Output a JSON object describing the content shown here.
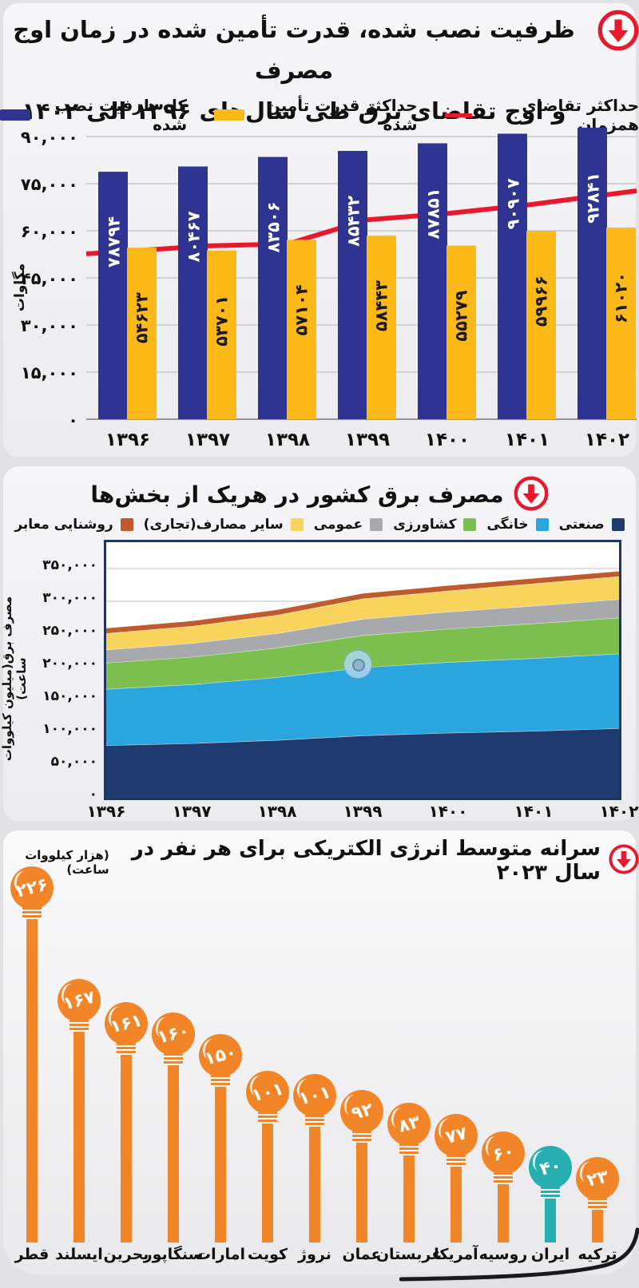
{
  "page_bg": "#e2e2e4",
  "accent_red": "#e8192c",
  "sections": {
    "capacity": {
      "title_line1": "ظرفیت نصب شده، قدرت تأمین شده در زمان اوج مصرف",
      "title_line2": "و اوج تقاضای برق طی سال‌های ۱۳۹۶ الی ۱۴۰۲"
    },
    "consumption": {
      "title": "مصرف برق کشور در هریک از بخش‌ها"
    },
    "percapita": {
      "title": "سرانه متوسط انرژی الکتریکی برای هر نفر در سال ۲۰۲۳",
      "unit": "(هزار کیلووات ساعت)"
    }
  },
  "chart_data": [
    {
      "type": "bar",
      "title": "ظرفیت نصب شده، قدرت تأمین شده در زمان اوج مصرف و اوج تقاضای برق طی سال‌های ۱۳۹۶ الی ۱۴۰۲",
      "categories": [
        "۱۳۹۶",
        "۱۳۹۷",
        "۱۳۹۸",
        "۱۳۹۹",
        "۱۴۰۰",
        "۱۴۰۱",
        "۱۴۰۲"
      ],
      "ylabel": "مگاوات",
      "ylim": [
        0,
        95000
      ],
      "yticks": [
        {
          "v": 90000,
          "label": "۹۰,۰۰۰"
        },
        {
          "v": 75000,
          "label": "۷۵,۰۰۰"
        },
        {
          "v": 60000,
          "label": "۶۰,۰۰۰"
        },
        {
          "v": 45000,
          "label": "۴۵,۰۰۰"
        },
        {
          "v": 30000,
          "label": "۳۰,۰۰۰"
        },
        {
          "v": 15000,
          "label": "۱۵,۰۰۰"
        },
        {
          "v": 0,
          "label": "۰"
        }
      ],
      "legend": [
        {
          "label": "حداکثر تقاضای همزمان",
          "swatch": "line",
          "color": "#e8192c"
        },
        {
          "label": "حداکثر قدرت تأمین شده",
          "swatch": "rect",
          "color": "#fcb918"
        },
        {
          "label": "کل ظرفیت نصب شده",
          "swatch": "rect",
          "color": "#2f3492"
        }
      ],
      "series": [
        {
          "name": "کل ظرفیت نصب شده",
          "kind": "bar",
          "color": "#2f3492",
          "label_color": "#ffffff",
          "values": [
            78794,
            80467,
            83506,
            85432,
            87851,
            90907,
            92841
          ],
          "labels": [
            "۷۸۷۹۴",
            "۸۰۴۶۷",
            "۸۳۵۰۶",
            "۸۵۴۳۲",
            "۸۷۸۵۱",
            "۹۰۹۰۷",
            "۹۲۸۴۱"
          ]
        },
        {
          "name": "حداکثر قدرت تأمین شده",
          "kind": "bar",
          "color": "#fcb918",
          "label_color": "#1a1a1a",
          "values": [
            54623,
            53701,
            57104,
            58443,
            55279,
            59966,
            61020
          ],
          "labels": [
            "۵۴۶۲۳",
            "۵۳۷۰۱",
            "۵۷۱۰۴",
            "۵۸۴۴۳",
            "۵۵۲۷۹",
            "۵۹۹۶۶",
            "۶۱۰۲۰"
          ]
        },
        {
          "name": "حداکثر تقاضای همزمان",
          "kind": "line",
          "color": "#e8192c",
          "values": [
            53500,
            55200,
            55800,
            63500,
            65500,
            68200,
            71500
          ]
        }
      ]
    },
    {
      "type": "area",
      "title": "مصرف برق کشور در هریک از بخش‌ها",
      "categories": [
        "۱۳۹۶",
        "۱۳۹۷",
        "۱۳۹۸",
        "۱۳۹۹",
        "۱۴۰۰",
        "۱۴۰۱",
        "۱۴۰۲"
      ],
      "ylabel": "مصرف برق(میلیون کیلووات ساعت)",
      "ylim": [
        0,
        392000
      ],
      "yticks": [
        {
          "v": 350000,
          "label": "۳۵۰,۰۰۰"
        },
        {
          "v": 300000,
          "label": "۳۰۰,۰۰۰"
        },
        {
          "v": 250000,
          "label": "۲۵۰,۰۰۰"
        },
        {
          "v": 200000,
          "label": "۲۰۰,۰۰۰"
        },
        {
          "v": 150000,
          "label": "۱۵۰,۰۰۰"
        },
        {
          "v": 100000,
          "label": "۱۰۰,۰۰۰"
        },
        {
          "v": 50000,
          "label": "۵۰,۰۰۰"
        },
        {
          "v": 0,
          "label": "۰"
        }
      ],
      "series": [
        {
          "name": "صنعتی",
          "color": "#1e3a6e",
          "values": [
            80000,
            83000,
            88000,
            95000,
            99000,
            102000,
            106000
          ]
        },
        {
          "name": "خانگی",
          "color": "#2aa5dd",
          "values": [
            86000,
            90000,
            96000,
            104000,
            108000,
            111000,
            114000
          ]
        },
        {
          "name": "کشاورزی",
          "color": "#7dbf4e",
          "values": [
            40000,
            42000,
            45000,
            49000,
            51000,
            53000,
            55000
          ]
        },
        {
          "name": "عمومی",
          "color": "#a7a9ac",
          "values": [
            20000,
            21000,
            22000,
            25000,
            26000,
            27000,
            28000
          ]
        },
        {
          "name": "سایر مصارف(تجاری)",
          "color": "#f9d45c",
          "values": [
            25000,
            26000,
            28000,
            31000,
            32000,
            34000,
            35000
          ]
        },
        {
          "name": "روشنایی معابر",
          "color": "#c05a2d",
          "values": [
            5000,
            5000,
            5000,
            5000,
            5000,
            5000,
            5000
          ]
        }
      ]
    },
    {
      "type": "lollipop",
      "title": "سرانه متوسط انرژی الکتریکی برای هر نفر در سال ۲۰۲۳",
      "unit": "(هزار کیلووات ساعت)",
      "default_color": "#f28527",
      "highlight_color": "#27aeb2",
      "items": [
        {
          "country": "قطر",
          "value": 226,
          "label": "۲۲۶"
        },
        {
          "country": "ایسلند",
          "value": 167,
          "label": "۱۶۷"
        },
        {
          "country": "بحرین",
          "value": 161,
          "label": "۱۶۱"
        },
        {
          "country": "سنگاپور",
          "value": 160,
          "label": "۱۶۰"
        },
        {
          "country": "امارات",
          "value": 150,
          "label": "۱۵۰"
        },
        {
          "country": "کویت",
          "value": 101,
          "label": "۱۰۱"
        },
        {
          "country": "نروژ",
          "value": 101,
          "label": "۱۰۱"
        },
        {
          "country": "عمان",
          "value": 92,
          "label": "۹۲"
        },
        {
          "country": "عربستان",
          "value": 83,
          "label": "۸۳"
        },
        {
          "country": "آمریکا",
          "value": 77,
          "label": "۷۷"
        },
        {
          "country": "روسیه",
          "value": 60,
          "label": "۶۰"
        },
        {
          "country": "ایران",
          "value": 40,
          "label": "۴۰",
          "highlight": true
        },
        {
          "country": "ترکیه",
          "value": 23,
          "label": "۲۳"
        }
      ]
    }
  ]
}
